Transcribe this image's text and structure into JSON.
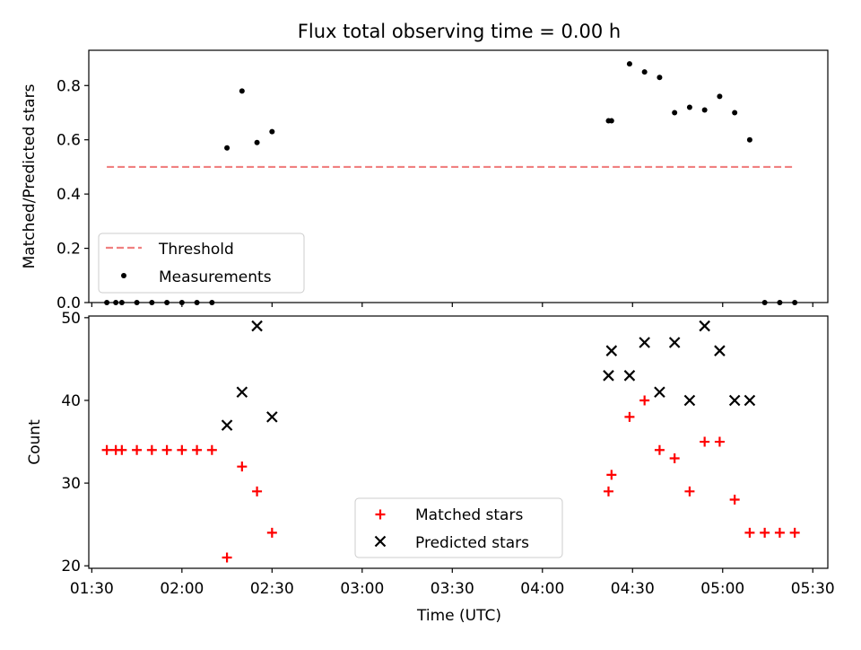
{
  "chart_data": {
    "type": "scatter",
    "title": "Flux total observing time = 0.00 h",
    "xlabel": "Time (UTC)",
    "x_tick_labels": [
      "01:30",
      "02:00",
      "02:30",
      "03:00",
      "03:30",
      "04:00",
      "04:30",
      "05:00",
      "05:30"
    ],
    "x_tick_values": [
      "01:30",
      "02:00",
      "02:30",
      "03:00",
      "03:30",
      "04:00",
      "04:30",
      "05:00",
      "05:30"
    ],
    "xlim": [
      "01:29",
      "05:35"
    ],
    "panels": [
      {
        "id": "ratio",
        "type": "scatter",
        "ylabel": "Matched/Predicted stars",
        "ylim": [
          0,
          0.93
        ],
        "y_ticks": [
          0.0,
          0.2,
          0.4,
          0.6,
          0.8
        ],
        "y_tick_labels": [
          "0.0",
          "0.2",
          "0.4",
          "0.6",
          "0.8"
        ],
        "legend_position": "lower-left",
        "threshold": {
          "name": "Threshold",
          "value": 0.5,
          "x_range": [
            "01:35",
            "05:24"
          ],
          "color": "#f08080"
        },
        "series": [
          {
            "name": "Measurements",
            "color": "#000000",
            "marker": "dot",
            "points": [
              {
                "x": "01:35",
                "y": 0.0
              },
              {
                "x": "01:38",
                "y": 0.0
              },
              {
                "x": "01:40",
                "y": 0.0
              },
              {
                "x": "01:45",
                "y": 0.0
              },
              {
                "x": "01:50",
                "y": 0.0
              },
              {
                "x": "01:55",
                "y": 0.0
              },
              {
                "x": "02:00",
                "y": 0.0
              },
              {
                "x": "02:05",
                "y": 0.0
              },
              {
                "x": "02:10",
                "y": 0.0
              },
              {
                "x": "02:15",
                "y": 0.57
              },
              {
                "x": "02:20",
                "y": 0.78
              },
              {
                "x": "02:25",
                "y": 0.59
              },
              {
                "x": "02:30",
                "y": 0.63
              },
              {
                "x": "04:22",
                "y": 0.67
              },
              {
                "x": "04:23",
                "y": 0.67
              },
              {
                "x": "04:29",
                "y": 0.88
              },
              {
                "x": "04:34",
                "y": 0.85
              },
              {
                "x": "04:39",
                "y": 0.83
              },
              {
                "x": "04:44",
                "y": 0.7
              },
              {
                "x": "04:49",
                "y": 0.72
              },
              {
                "x": "04:54",
                "y": 0.71
              },
              {
                "x": "04:59",
                "y": 0.76
              },
              {
                "x": "05:04",
                "y": 0.7
              },
              {
                "x": "05:09",
                "y": 0.6
              },
              {
                "x": "05:14",
                "y": 0.0
              },
              {
                "x": "05:19",
                "y": 0.0
              },
              {
                "x": "05:24",
                "y": 0.0
              }
            ]
          }
        ]
      },
      {
        "id": "counts",
        "type": "scatter",
        "ylabel": "Count",
        "ylim": [
          19.7,
          50.2
        ],
        "y_ticks": [
          20,
          30,
          40,
          50
        ],
        "y_tick_labels": [
          "20",
          "30",
          "40",
          "50"
        ],
        "legend_position": "lower-center",
        "series": [
          {
            "name": "Matched stars",
            "color": "#ff0000",
            "marker": "plus",
            "points": [
              {
                "x": "01:35",
                "y": 34
              },
              {
                "x": "01:38",
                "y": 34
              },
              {
                "x": "01:40",
                "y": 34
              },
              {
                "x": "01:45",
                "y": 34
              },
              {
                "x": "01:50",
                "y": 34
              },
              {
                "x": "01:55",
                "y": 34
              },
              {
                "x": "02:00",
                "y": 34
              },
              {
                "x": "02:05",
                "y": 34
              },
              {
                "x": "02:10",
                "y": 34
              },
              {
                "x": "02:15",
                "y": 21
              },
              {
                "x": "02:20",
                "y": 32
              },
              {
                "x": "02:25",
                "y": 29
              },
              {
                "x": "02:30",
                "y": 24
              },
              {
                "x": "04:22",
                "y": 29
              },
              {
                "x": "04:23",
                "y": 31
              },
              {
                "x": "04:29",
                "y": 38
              },
              {
                "x": "04:34",
                "y": 40
              },
              {
                "x": "04:39",
                "y": 34
              },
              {
                "x": "04:44",
                "y": 33
              },
              {
                "x": "04:49",
                "y": 29
              },
              {
                "x": "04:54",
                "y": 35
              },
              {
                "x": "04:59",
                "y": 35
              },
              {
                "x": "05:04",
                "y": 28
              },
              {
                "x": "05:09",
                "y": 24
              },
              {
                "x": "05:14",
                "y": 24
              },
              {
                "x": "05:19",
                "y": 24
              },
              {
                "x": "05:24",
                "y": 24
              }
            ]
          },
          {
            "name": "Predicted stars",
            "color": "#000000",
            "marker": "x",
            "points": [
              {
                "x": "02:15",
                "y": 37
              },
              {
                "x": "02:20",
                "y": 41
              },
              {
                "x": "02:25",
                "y": 49
              },
              {
                "x": "02:30",
                "y": 38
              },
              {
                "x": "04:22",
                "y": 43
              },
              {
                "x": "04:23",
                "y": 46
              },
              {
                "x": "04:29",
                "y": 43
              },
              {
                "x": "04:34",
                "y": 47
              },
              {
                "x": "04:39",
                "y": 41
              },
              {
                "x": "04:44",
                "y": 47
              },
              {
                "x": "04:49",
                "y": 40
              },
              {
                "x": "04:54",
                "y": 49
              },
              {
                "x": "04:59",
                "y": 46
              },
              {
                "x": "05:04",
                "y": 40
              },
              {
                "x": "05:09",
                "y": 40
              }
            ]
          }
        ]
      }
    ]
  }
}
